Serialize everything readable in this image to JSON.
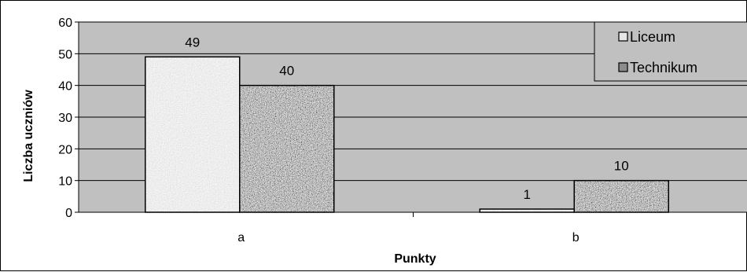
{
  "chart_data": {
    "type": "bar",
    "categories": [
      "a",
      "b"
    ],
    "series": [
      {
        "name": "Liceum",
        "values": [
          49,
          1
        ],
        "color": "#e6e6e6"
      },
      {
        "name": "Technikum",
        "values": [
          40,
          10
        ],
        "color": "#8c8c8c"
      }
    ],
    "data_labels": [
      [
        "49",
        "1"
      ],
      [
        "40",
        "10"
      ]
    ],
    "xlabel": "Punkty",
    "ylabel": "Liczba uczniów",
    "ylim": [
      0,
      60
    ],
    "yticks": [
      0,
      10,
      20,
      30,
      40,
      50,
      60
    ],
    "grid": true,
    "legend_position": "top-right",
    "plot_background": "#c0c0c0"
  }
}
